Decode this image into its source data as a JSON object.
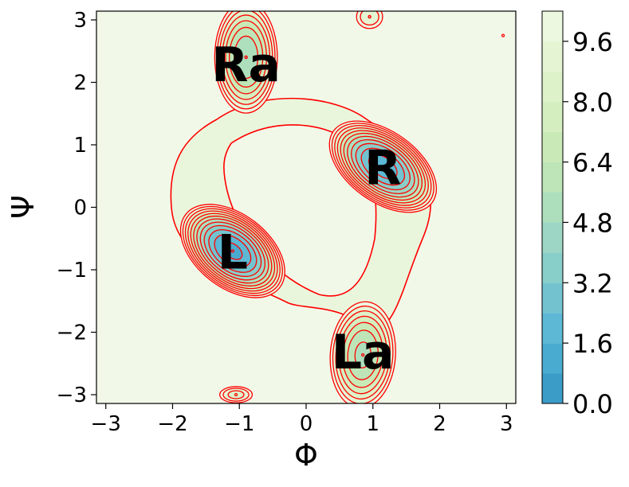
{
  "chart_data": {
    "type": "heatmap",
    "subtype": "free-energy contour map (filled contours + red contour lines)",
    "xlabel": "Φ",
    "ylabel": "Ψ",
    "xlim": [
      -3.14,
      3.14
    ],
    "ylim": [
      -3.14,
      3.14
    ],
    "x_ticks": [
      -3,
      -2,
      -1,
      0,
      1,
      2,
      3
    ],
    "y_ticks": [
      -3,
      -2,
      -1,
      0,
      1,
      2,
      3
    ],
    "x_tick_labels": [
      "−3",
      "−2",
      "−1",
      "0",
      "1",
      "2",
      "3"
    ],
    "y_tick_labels": [
      "−3",
      "−2",
      "−1",
      "0",
      "1",
      "2",
      "3"
    ],
    "colorbar": {
      "ticks": [
        0.0,
        1.6,
        3.2,
        4.8,
        6.4,
        8.0,
        9.6
      ],
      "tick_labels": [
        "0.0",
        "1.6",
        "3.2",
        "4.8",
        "6.4",
        "8.0",
        "9.6"
      ],
      "range": [
        0.0,
        10.4
      ],
      "levels": [
        0.0,
        0.8,
        1.6,
        2.4,
        3.2,
        4.0,
        4.8,
        5.6,
        6.4,
        7.2,
        8.0,
        8.8,
        9.6,
        10.4
      ],
      "colors": [
        "#3b9cc8",
        "#4aabd0",
        "#5cb8d4",
        "#72c3cf",
        "#88cec9",
        "#9dd6c4",
        "#aedfbd",
        "#bde5b7",
        "#c9eab6",
        "#d4eec0",
        "#ddf2c9",
        "#e5f5d4",
        "#ecf8e0"
      ],
      "cmap": "GnBu_r",
      "contour_line_color": "#ff0000"
    },
    "basins": [
      {
        "label": "Ra",
        "phi": -0.9,
        "psi": 2.3,
        "min_level": 4.0
      },
      {
        "label": "R",
        "phi": 1.15,
        "psi": 0.65,
        "min_level": 1.0
      },
      {
        "label": "L",
        "phi": -1.1,
        "psi": -0.7,
        "min_level": 0.5
      },
      {
        "label": "La",
        "phi": 0.85,
        "psi": -2.3,
        "min_level": 4.5
      },
      {
        "label": "",
        "phi": -1.05,
        "psi": -3.0,
        "min_level": 7.5
      },
      {
        "label": "",
        "phi": 0.95,
        "psi": 3.05,
        "min_level": 8.0
      },
      {
        "label": "",
        "phi": 2.95,
        "psi": 2.75,
        "min_level": 9.7
      }
    ],
    "background_level": 10.4,
    "grid": false
  }
}
